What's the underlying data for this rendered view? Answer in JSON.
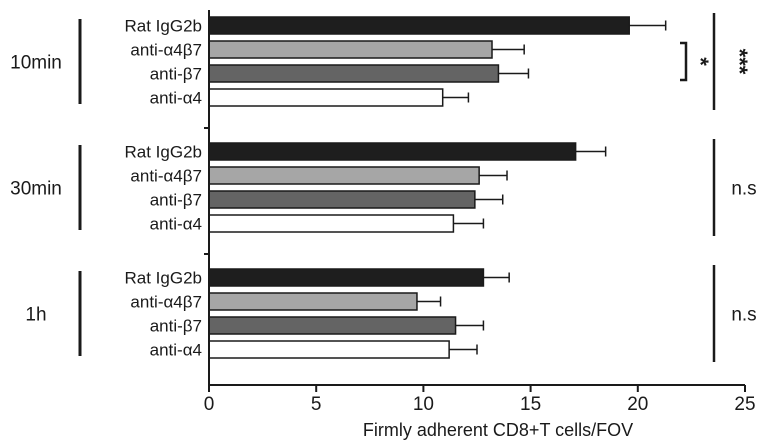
{
  "chart_data": {
    "type": "bar",
    "orientation": "horizontal",
    "xlabel": "Firmly adherent CD8+T cells/FOV",
    "xlim": [
      0,
      25
    ],
    "xticks": [
      0,
      5,
      10,
      15,
      20,
      25
    ],
    "grid": false,
    "legend": "none",
    "categories": [
      "Rat IgG2b",
      "anti-α4β7",
      "anti-β7",
      "anti-α4"
    ],
    "category_colors": [
      "#1e1e1e",
      "#a6a6a6",
      "#646464",
      "#ffffff"
    ],
    "groups": [
      {
        "label": "10min",
        "values": [
          19.6,
          13.2,
          13.5,
          10.9
        ],
        "errors": [
          1.7,
          1.5,
          1.4,
          1.2
        ],
        "annotations": [
          {
            "text": "*",
            "from_bar": 1,
            "to_bar": 2,
            "level": "inner"
          },
          {
            "text": "***",
            "from_bar": 0,
            "to_bar": 3,
            "level": "outer"
          }
        ]
      },
      {
        "label": "30min",
        "values": [
          17.1,
          12.6,
          12.4,
          11.4
        ],
        "errors": [
          1.4,
          1.3,
          1.3,
          1.4
        ],
        "annotations": [
          {
            "text": "n.s",
            "from_bar": 0,
            "to_bar": 3,
            "level": "outer"
          }
        ]
      },
      {
        "label": "1h",
        "values": [
          12.8,
          9.7,
          11.5,
          11.2
        ],
        "errors": [
          1.2,
          1.1,
          1.3,
          1.3
        ],
        "annotations": [
          {
            "text": "n.s",
            "from_bar": 0,
            "to_bar": 3,
            "level": "outer"
          }
        ]
      }
    ]
  }
}
